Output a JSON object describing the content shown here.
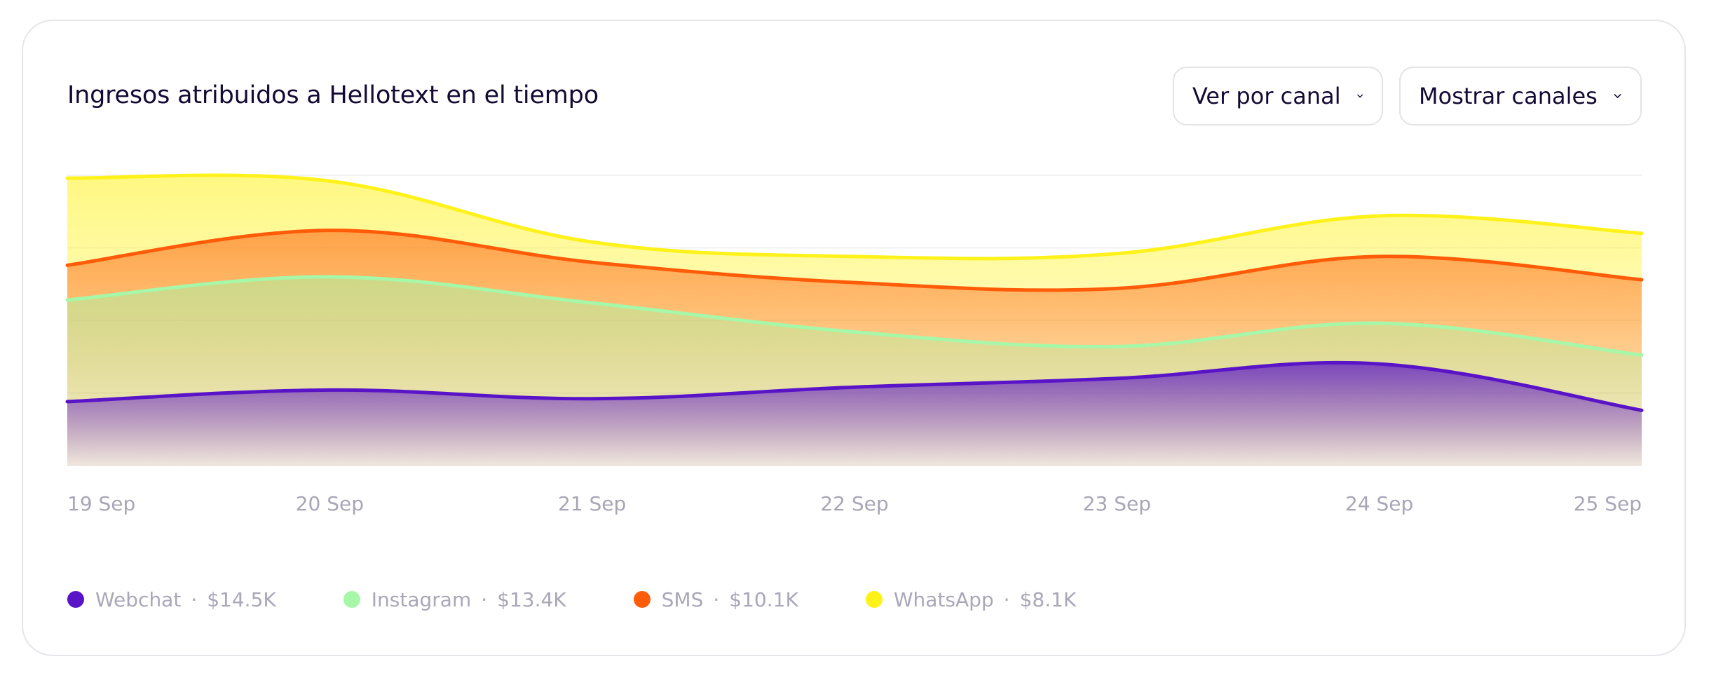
{
  "header": {
    "title": "Ingresos atribuidos a Hellotext en el tiempo",
    "view_dropdown_label": "Ver por canal",
    "channels_dropdown_label": "Mostrar canales"
  },
  "legend": [
    {
      "name": "Webchat",
      "sep": "·",
      "total": "$14.5K",
      "color": "#5a14c8"
    },
    {
      "name": "Instagram",
      "sep": "·",
      "total": "$13.4K",
      "color": "#a6f7a8"
    },
    {
      "name": "SMS",
      "sep": "·",
      "total": "$10.1K",
      "color": "#ff5c0a"
    },
    {
      "name": "WhatsApp",
      "sep": "·",
      "total": "$8.1K",
      "color": "#fff21a"
    }
  ],
  "chart_data": {
    "type": "area",
    "stacked": true,
    "x": [
      "19 Sep",
      "20 Sep",
      "21 Sep",
      "22 Sep",
      "23 Sep",
      "24 Sep",
      "25 Sep"
    ],
    "y_axis_labels_shown": false,
    "grid": "horizontal",
    "series": [
      {
        "name": "Webchat",
        "color": "#5a14c8",
        "values": [
          22,
          26,
          23,
          27,
          30,
          35,
          19
        ]
      },
      {
        "name": "Instagram",
        "color": "#a6f7a8",
        "values": [
          35,
          39,
          33,
          19,
          11,
          14,
          19
        ]
      },
      {
        "name": "SMS",
        "color": "#ff5c0a",
        "values": [
          12,
          16,
          14,
          17,
          20,
          23,
          26
        ]
      },
      {
        "name": "WhatsApp",
        "color": "#fff21a",
        "values": [
          30,
          17,
          7,
          9,
          12,
          14,
          16
        ]
      }
    ],
    "ylim": [
      0,
      100
    ],
    "legend_position": "bottom"
  }
}
